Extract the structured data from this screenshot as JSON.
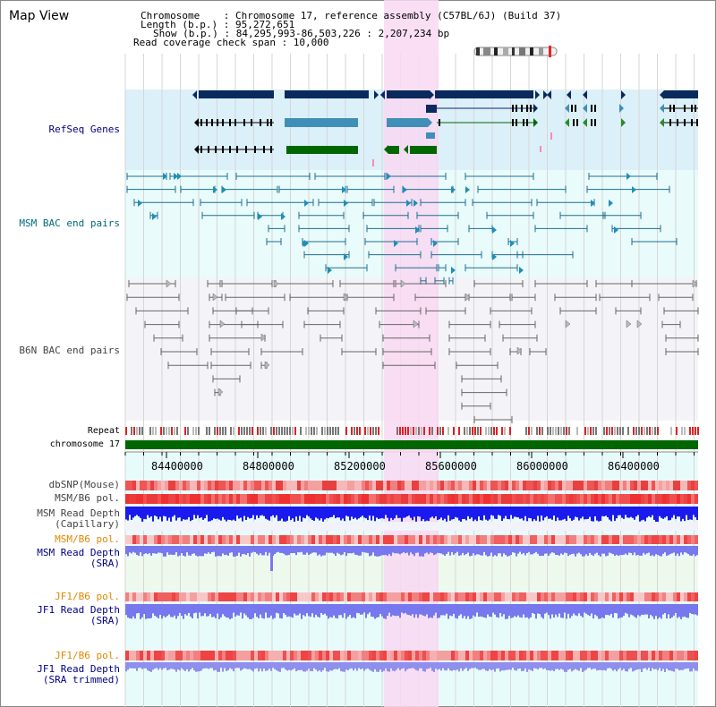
{
  "title": "Map View",
  "info": {
    "chromosome": "Chromosome    : Chromosome 17, reference assembly (C57BL/6J) (Build 37)",
    "length": "Length (b.p.) : 95,272,651",
    "show": "Show (b.p.) : 84,295,993-86,503,226 : 2,207,234 bp",
    "coverage": "Read coverage check span : 10,000"
  },
  "tracks": {
    "refseq": "RefSeq Genes",
    "msm_bac": "MSM BAC end pairs",
    "b6n_bac": "B6N BAC end pairs",
    "repeat": "Repeat",
    "chromosome": "chromosome 17",
    "dbsnp": "dbSNP(Mouse)",
    "msm_pol": "MSM/B6 pol.",
    "msm_depth_cap_1": "MSM Read Depth",
    "msm_depth_cap_2": "(Capillary)",
    "msm_pol2": "MSM/B6 pol.",
    "msm_depth_sra_1": "MSM Read Depth",
    "msm_depth_sra_2": "(SRA)",
    "jf1_pol": "JF1/B6 pol.",
    "jf1_depth_sra_1": "JF1 Read Depth",
    "jf1_depth_sra_2": "(SRA)",
    "jf1_pol2": "JF1/B6 pol.",
    "jf1_depth_trim_1": "JF1 Read Depth",
    "jf1_depth_trim_2": "(SRA trimmed)"
  },
  "axis": {
    "ticks": [
      "84400000",
      "84800000",
      "85200000",
      "85600000",
      "86000000",
      "86400000"
    ]
  },
  "colors": {
    "gene_dark": "#0a2a5e",
    "gene_mid": "#3f8fb8",
    "gene_green": "#006600",
    "msm_pair": "#1d6f8f",
    "b6n_pair": "#666666",
    "chromosome_bar": "#006600",
    "highlight": "#f8d8f2",
    "label_navy": "#000080",
    "label_teal": "#006b7a",
    "label_orange": "#e08800",
    "depth_capillary": "#1a1aee",
    "depth_sra": "#7777ee"
  }
}
